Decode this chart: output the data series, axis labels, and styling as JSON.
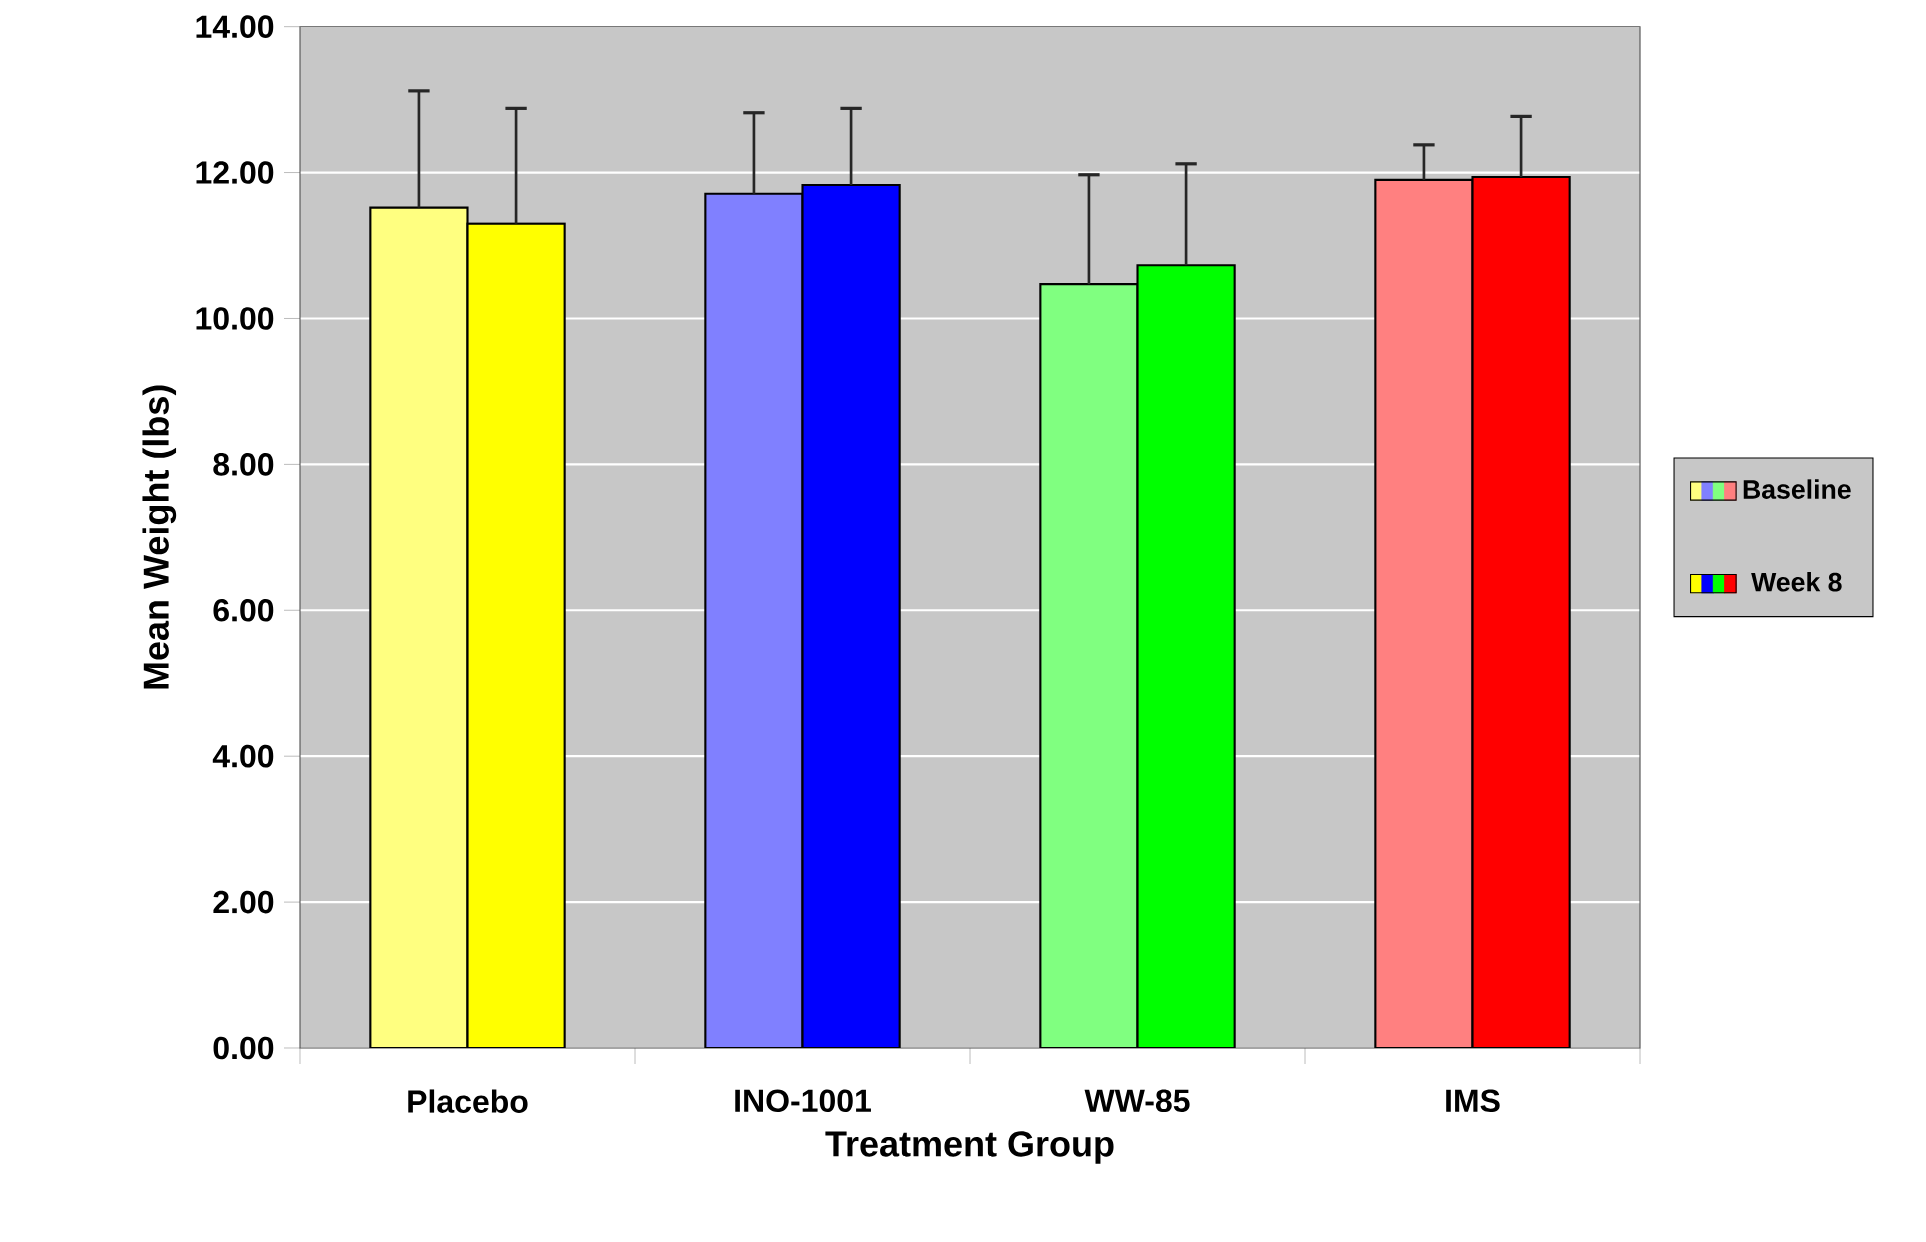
{
  "chart_data": {
    "type": "bar",
    "xlabel": "Treatment Group",
    "ylabel": "Mean Weight (lbs)",
    "categories": [
      "Placebo",
      "INO-1001",
      "WW-85",
      "IMS"
    ],
    "series": [
      {
        "name": "Baseline",
        "colors": [
          "#ffff80",
          "#8080ff",
          "#80ff80",
          "#ff8080"
        ],
        "values": [
          11.52,
          11.71,
          10.47,
          11.9
        ],
        "errors": [
          [
            11.52,
            13.12
          ],
          [
            11.71,
            12.82
          ],
          [
            10.47,
            11.97
          ],
          [
            11.9,
            12.38
          ]
        ]
      },
      {
        "name": "Week 8",
        "colors": [
          "#ffff00",
          "#0000ff",
          "#00ff00",
          "#ff0000"
        ],
        "values": [
          11.3,
          11.83,
          10.73,
          11.94
        ],
        "errors": [
          [
            11.3,
            12.88
          ],
          [
            11.83,
            12.88
          ],
          [
            10.73,
            12.12
          ],
          [
            11.94,
            12.77
          ]
        ]
      }
    ],
    "ylim": [
      0,
      14
    ],
    "yticks": [
      {
        "value": 0,
        "label": "0.00"
      },
      {
        "value": 2,
        "label": "2.00"
      },
      {
        "value": 4,
        "label": "4.00"
      },
      {
        "value": 6,
        "label": "6.00"
      },
      {
        "value": 8,
        "label": "8.00"
      },
      {
        "value": 10,
        "label": "10.00"
      },
      {
        "value": 12,
        "label": "12.00"
      },
      {
        "value": 14,
        "label": "14.00"
      }
    ],
    "grid": "y",
    "legend": "right"
  }
}
